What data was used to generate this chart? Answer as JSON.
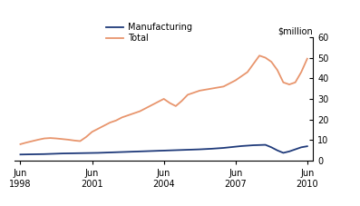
{
  "ylabel": "$million",
  "ylim": [
    0,
    60
  ],
  "yticks": [
    0,
    10,
    20,
    30,
    40,
    50,
    60
  ],
  "xlim": [
    1998.25,
    2010.75
  ],
  "xtick_positions": [
    1998.5,
    2001.5,
    2004.5,
    2007.5,
    2010.5
  ],
  "xtick_labels": [
    "Jun\n1998",
    "Jun\n2001",
    "Jun\n2004",
    "Jun\n2007",
    "Jun\n2010"
  ],
  "manufacturing_color": "#1f3a7a",
  "total_color": "#e8956d",
  "legend_labels": [
    "Manufacturing",
    "Total"
  ],
  "manufacturing_x": [
    1998.5,
    1998.75,
    1999.0,
    1999.25,
    1999.5,
    1999.75,
    2000.0,
    2000.25,
    2000.5,
    2000.75,
    2001.0,
    2001.25,
    2001.5,
    2001.75,
    2002.0,
    2002.25,
    2002.5,
    2002.75,
    2003.0,
    2003.25,
    2003.5,
    2003.75,
    2004.0,
    2004.25,
    2004.5,
    2004.75,
    2005.0,
    2005.25,
    2005.5,
    2005.75,
    2006.0,
    2006.25,
    2006.5,
    2006.75,
    2007.0,
    2007.25,
    2007.5,
    2007.75,
    2008.0,
    2008.25,
    2008.5,
    2008.75,
    2009.0,
    2009.25,
    2009.5,
    2009.75,
    2010.0,
    2010.25,
    2010.5
  ],
  "manufacturing_y": [
    3.0,
    3.05,
    3.1,
    3.15,
    3.2,
    3.3,
    3.4,
    3.5,
    3.55,
    3.6,
    3.65,
    3.7,
    3.75,
    3.8,
    3.9,
    4.0,
    4.1,
    4.2,
    4.3,
    4.4,
    4.5,
    4.6,
    4.7,
    4.8,
    4.9,
    5.0,
    5.1,
    5.2,
    5.3,
    5.4,
    5.5,
    5.65,
    5.8,
    6.0,
    6.2,
    6.5,
    6.8,
    7.1,
    7.3,
    7.5,
    7.6,
    7.7,
    6.5,
    5.0,
    3.8,
    4.5,
    5.5,
    6.5,
    7.0
  ],
  "total_x": [
    1998.5,
    1998.75,
    1999.0,
    1999.25,
    1999.5,
    1999.75,
    2000.0,
    2000.25,
    2000.5,
    2000.75,
    2001.0,
    2001.25,
    2001.5,
    2001.75,
    2002.0,
    2002.25,
    2002.5,
    2002.75,
    2003.0,
    2003.25,
    2003.5,
    2003.75,
    2004.0,
    2004.25,
    2004.5,
    2004.75,
    2005.0,
    2005.25,
    2005.5,
    2005.75,
    2006.0,
    2006.25,
    2006.5,
    2006.75,
    2007.0,
    2007.25,
    2007.5,
    2007.75,
    2008.0,
    2008.25,
    2008.5,
    2008.75,
    2009.0,
    2009.25,
    2009.5,
    2009.75,
    2010.0,
    2010.25,
    2010.5
  ],
  "total_y": [
    8.0,
    8.8,
    9.5,
    10.2,
    10.8,
    11.0,
    10.8,
    10.5,
    10.2,
    9.8,
    9.5,
    11.5,
    14.0,
    15.5,
    17.0,
    18.5,
    19.5,
    21.0,
    22.0,
    23.0,
    24.0,
    25.5,
    27.0,
    28.5,
    30.0,
    28.0,
    26.5,
    29.0,
    32.0,
    33.0,
    34.0,
    34.5,
    35.0,
    35.5,
    36.0,
    37.5,
    39.0,
    41.0,
    43.0,
    47.0,
    51.0,
    50.0,
    48.0,
    44.0,
    38.0,
    37.0,
    38.0,
    43.0,
    49.5
  ]
}
